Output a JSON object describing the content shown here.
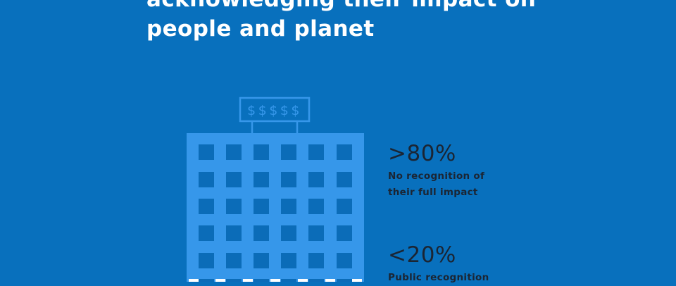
{
  "headline": {
    "lines": [
      "acknowledging their impact on",
      "people and planet"
    ]
  },
  "billboard": {
    "text": "$$$$$"
  },
  "stats": [
    {
      "value": ">80%",
      "label_lines": [
        "No recognition of",
        "their full impact"
      ]
    },
    {
      "value": "<20%",
      "label_lines": [
        "Public recognition"
      ]
    }
  ],
  "colors": {
    "background": "#0870bd",
    "building": "#3697ea",
    "windows": "#0b6cb8",
    "text_dark": "#1b2533",
    "text_light": "#ffffff"
  }
}
